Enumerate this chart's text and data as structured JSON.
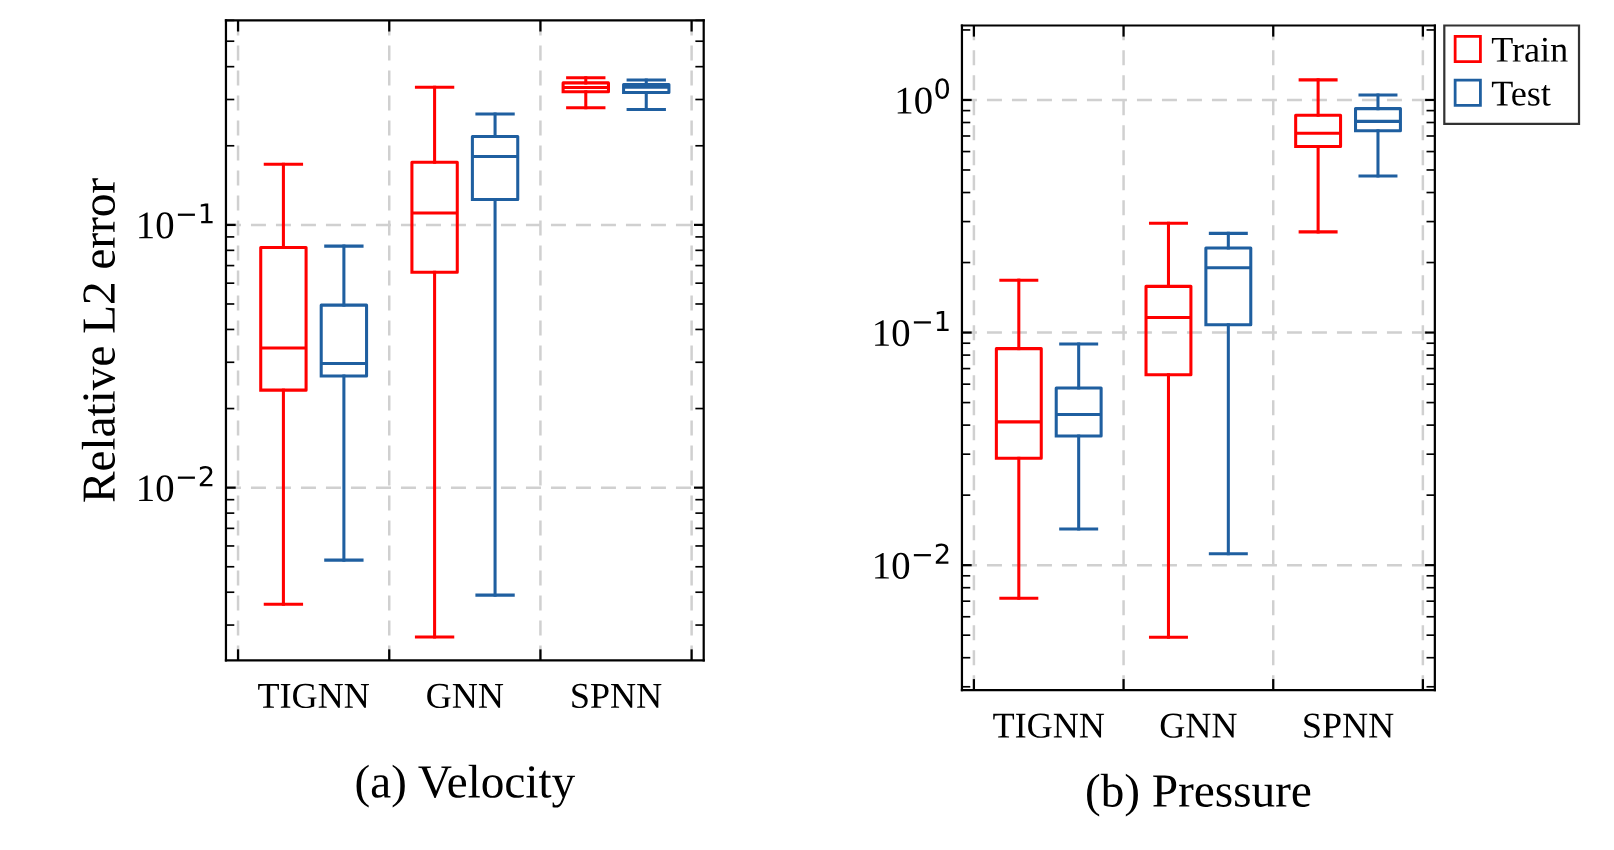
{
  "chart_data": [
    {
      "type": "box",
      "title": "(a) Velocity",
      "ylabel": "Relative L2 error",
      "categories": [
        "TIGNN",
        "GNN",
        "SPNN"
      ],
      "log": "y",
      "ylim": [
        0.0022,
        0.6
      ],
      "yticks": [
        {
          "value": 0.01,
          "label": "10$^{−2}$"
        },
        {
          "value": 0.1,
          "label": "10$^{−1}$"
        }
      ],
      "grid": true,
      "series": [
        {
          "color": "#ff0000",
          "boxes": [
            {
              "low": 0.0036,
              "q1": 0.0235,
              "median": 0.034,
              "q3": 0.082,
              "high": 0.17
            },
            {
              "low": 0.0027,
              "q1": 0.066,
              "median": 0.111,
              "q3": 0.173,
              "high": 0.334
            },
            {
              "low": 0.279,
              "q1": 0.321,
              "median": 0.333,
              "q3": 0.347,
              "high": 0.363
            }
          ]
        },
        {
          "color": "#1f5fa0",
          "boxes": [
            {
              "low": 0.0053,
              "q1": 0.0266,
              "median": 0.0297,
              "q3": 0.0495,
              "high": 0.083
            },
            {
              "low": 0.0039,
              "q1": 0.125,
              "median": 0.182,
              "q3": 0.217,
              "high": 0.264
            },
            {
              "low": 0.275,
              "q1": 0.319,
              "median": 0.334,
              "q3": 0.342,
              "high": 0.356
            }
          ]
        }
      ]
    },
    {
      "type": "box",
      "title": "(b) Pressure",
      "categories": [
        "TIGNN",
        "GNN",
        "SPNN"
      ],
      "log": "y",
      "ylim": [
        0.0029,
        2.09
      ],
      "yticks": [
        {
          "value": 0.01,
          "label": "10$^{−2}$"
        },
        {
          "value": 0.1,
          "label": "10$^{−1}$"
        },
        {
          "value": 1,
          "label": "10$^{0}$"
        }
      ],
      "grid": true,
      "legend": "right",
      "series": [
        {
          "name": "Train",
          "color": "#ff0000",
          "boxes": [
            {
              "low": 0.0072,
              "q1": 0.0288,
              "median": 0.0413,
              "q3": 0.0853,
              "high": 0.168
            },
            {
              "low": 0.0049,
              "q1": 0.0659,
              "median": 0.116,
              "q3": 0.158,
              "high": 0.295
            },
            {
              "low": 0.271,
              "q1": 0.631,
              "median": 0.719,
              "q3": 0.859,
              "high": 1.22
            }
          ]
        },
        {
          "name": "Test",
          "color": "#1f5fa0",
          "boxes": [
            {
              "low": 0.0143,
              "q1": 0.0359,
              "median": 0.0444,
              "q3": 0.0578,
              "high": 0.0893
            },
            {
              "low": 0.0112,
              "q1": 0.108,
              "median": 0.19,
              "q3": 0.231,
              "high": 0.267
            },
            {
              "low": 0.471,
              "q1": 0.738,
              "median": 0.809,
              "q3": 0.918,
              "high": 1.05
            }
          ]
        }
      ]
    }
  ]
}
